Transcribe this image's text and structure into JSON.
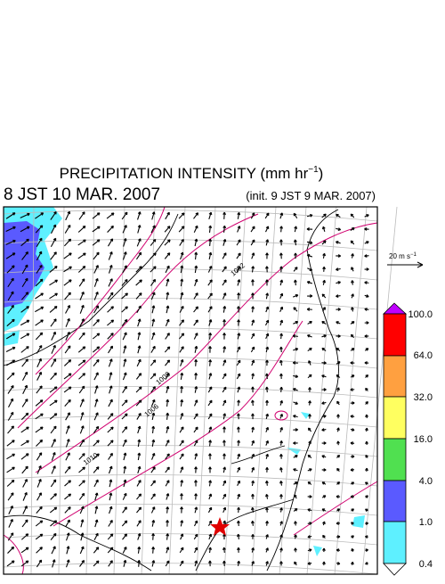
{
  "header": {
    "title": "PRECIPITATION INTENSITY (mm hr",
    "title_exponent": "−1",
    "title_close": ")",
    "valid_time": "8 JST 10 MAR. 2007",
    "init_time": "(init. 9 JST 9 MAR. 2007)"
  },
  "vector_legend": {
    "label": "20 m s",
    "exponent": "−1"
  },
  "colorbar": {
    "levels": [
      "100.0",
      "64.0",
      "32.0",
      "16.0",
      "4.0",
      "1.0",
      "0.4"
    ]
  },
  "isobar_labels": [
    "1002",
    "1008",
    "1006",
    "1010"
  ]
}
